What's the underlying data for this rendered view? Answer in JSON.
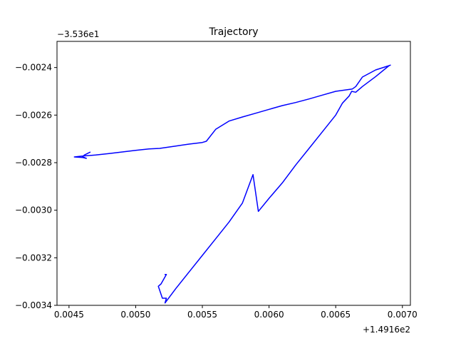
{
  "chart_data": {
    "type": "line",
    "title": "Trajectory",
    "xlabel": "",
    "ylabel": "",
    "x_offset_label": "+1.4916e2",
    "y_offset_label": "−3.536e1",
    "xlim": [
      0.00441,
      0.00706
    ],
    "ylim": [
      -0.0034,
      -0.00229
    ],
    "x_ticks": [
      0.0045,
      0.005,
      0.0055,
      0.006,
      0.0065,
      0.007
    ],
    "x_tick_labels": [
      "0.0045",
      "0.0050",
      "0.0055",
      "0.0060",
      "0.0065",
      "0.0070"
    ],
    "y_ticks": [
      -0.0034,
      -0.0032,
      -0.003,
      -0.0028,
      -0.0026,
      -0.0024
    ],
    "y_tick_labels": [
      "−0.0034",
      "−0.0032",
      "−0.0030",
      "−0.0028",
      "−0.0026",
      "−0.0024"
    ],
    "grid": false,
    "legend": "none",
    "series": [
      {
        "color": "#0000ff",
        "x": [
          0.004658,
          0.004615,
          0.0046,
          0.00463,
          0.0046,
          0.00454,
          0.0046,
          0.0047,
          0.0048,
          0.0049,
          0.005,
          0.0051,
          0.00518,
          0.0053,
          0.0054,
          0.0055,
          0.00553,
          0.0056,
          0.0057,
          0.0058,
          0.0059,
          0.006,
          0.0061,
          0.0062,
          0.0063,
          0.0064,
          0.0065,
          0.006625,
          0.00665,
          0.0067,
          0.0068,
          0.0069,
          0.00691,
          0.0069,
          0.0068,
          0.0067,
          0.00665,
          0.00662,
          0.0066,
          0.00655,
          0.0065,
          0.0064,
          0.0063,
          0.0062,
          0.0061,
          0.006,
          0.00592,
          0.00588,
          0.0058,
          0.0057,
          0.0056,
          0.0055,
          0.0054,
          0.0053,
          0.00522,
          0.00523,
          0.00522,
          0.0052,
          0.00517,
          0.00519,
          0.00523,
          0.00522
        ],
        "y": [
          -0.002756,
          -0.002768,
          -0.002775,
          -0.002782,
          -0.002778,
          -0.002776,
          -0.002772,
          -0.002768,
          -0.002762,
          -0.002755,
          -0.002748,
          -0.002742,
          -0.00274,
          -0.00273,
          -0.002722,
          -0.002715,
          -0.00271,
          -0.00266,
          -0.002625,
          -0.002608,
          -0.002592,
          -0.002576,
          -0.00256,
          -0.002547,
          -0.002532,
          -0.002516,
          -0.0025,
          -0.00249,
          -0.00248,
          -0.00244,
          -0.00241,
          -0.002392,
          -0.00239,
          -0.002392,
          -0.002438,
          -0.00248,
          -0.002504,
          -0.0025,
          -0.00252,
          -0.00255,
          -0.0026,
          -0.00267,
          -0.00274,
          -0.00281,
          -0.002885,
          -0.00295,
          -0.003005,
          -0.00285,
          -0.00297,
          -0.00305,
          -0.00312,
          -0.00319,
          -0.00326,
          -0.00333,
          -0.00339,
          -0.00337,
          -0.00337,
          -0.00337,
          -0.00332,
          -0.00331,
          -0.00327,
          -0.00327
        ]
      }
    ]
  }
}
